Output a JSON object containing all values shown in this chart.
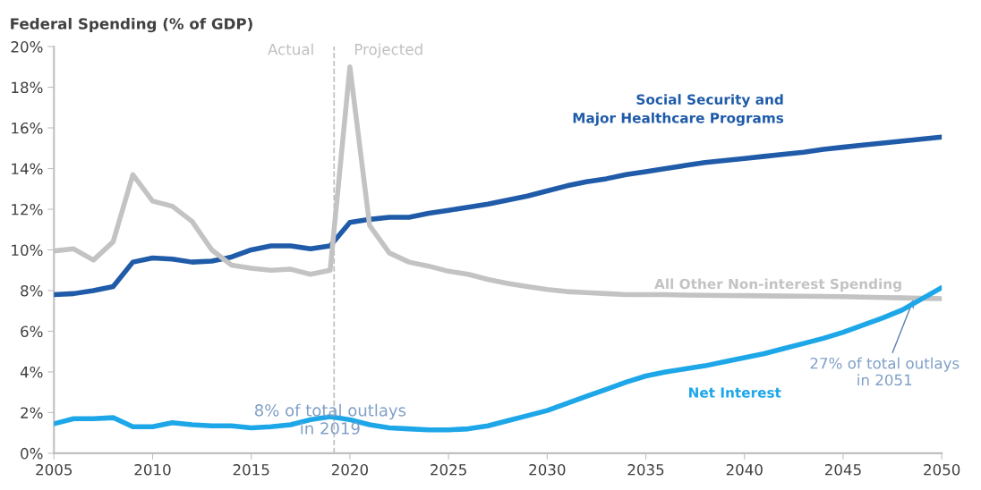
{
  "chart_data": {
    "type": "line",
    "title": "Federal Spending (% of GDP)",
    "x": [
      2005,
      2006,
      2007,
      2008,
      2009,
      2010,
      2011,
      2012,
      2013,
      2014,
      2015,
      2016,
      2017,
      2018,
      2019,
      2020,
      2021,
      2022,
      2023,
      2024,
      2025,
      2026,
      2027,
      2028,
      2029,
      2030,
      2031,
      2032,
      2033,
      2034,
      2035,
      2036,
      2037,
      2038,
      2039,
      2040,
      2041,
      2042,
      2043,
      2044,
      2045,
      2046,
      2047,
      2048,
      2049,
      2050
    ],
    "series": [
      {
        "name": "Social Security and\nMajor Healthcare Programs",
        "color": "#1f5ba8",
        "values": [
          7.8,
          7.85,
          8.0,
          8.2,
          9.4,
          9.6,
          9.55,
          9.4,
          9.45,
          9.65,
          10.0,
          10.2,
          10.2,
          10.05,
          10.2,
          11.35,
          11.5,
          11.6,
          11.6,
          11.8,
          11.95,
          12.1,
          12.25,
          12.45,
          12.65,
          12.9,
          13.15,
          13.35,
          13.5,
          13.7,
          13.85,
          14.0,
          14.15,
          14.3,
          14.4,
          14.5,
          14.6,
          14.7,
          14.8,
          14.95,
          15.05,
          15.15,
          15.25,
          15.35,
          15.45,
          15.55
        ]
      },
      {
        "name": "All Other Non-interest Spending",
        "color": "#c3c3c3",
        "values": [
          9.95,
          10.05,
          9.5,
          10.4,
          13.7,
          12.4,
          12.15,
          11.4,
          10.0,
          9.25,
          9.1,
          9.0,
          9.05,
          8.8,
          9.0,
          19.0,
          11.2,
          9.85,
          9.4,
          9.2,
          8.95,
          8.8,
          8.55,
          8.35,
          8.2,
          8.05,
          7.95,
          7.9,
          7.85,
          7.8,
          7.8,
          7.8,
          7.78,
          7.77,
          7.76,
          7.75,
          7.74,
          7.73,
          7.72,
          7.71,
          7.7,
          7.68,
          7.66,
          7.64,
          7.62,
          7.6
        ]
      },
      {
        "name": "Net Interest",
        "color": "#1ea7e8",
        "values": [
          1.45,
          1.7,
          1.7,
          1.75,
          1.3,
          1.3,
          1.5,
          1.4,
          1.35,
          1.35,
          1.25,
          1.3,
          1.4,
          1.65,
          1.8,
          1.65,
          1.4,
          1.25,
          1.2,
          1.15,
          1.15,
          1.2,
          1.35,
          1.6,
          1.85,
          2.1,
          2.45,
          2.8,
          3.15,
          3.5,
          3.8,
          4.0,
          4.15,
          4.3,
          4.5,
          4.7,
          4.9,
          5.15,
          5.4,
          5.65,
          5.95,
          6.3,
          6.65,
          7.05,
          7.6,
          8.15
        ]
      }
    ],
    "xlim": [
      2005,
      2050
    ],
    "xticks": [
      2005,
      2010,
      2015,
      2020,
      2025,
      2030,
      2035,
      2040,
      2045,
      2050
    ],
    "ylim": [
      0,
      20
    ],
    "yticks": [
      {
        "value": 0,
        "label": "0%"
      },
      {
        "value": 2,
        "label": "2%"
      },
      {
        "value": 4,
        "label": "4%"
      },
      {
        "value": 6,
        "label": "6%"
      },
      {
        "value": 8,
        "label": "8%"
      },
      {
        "value": 10,
        "label": "10%"
      },
      {
        "value": 12,
        "label": "12%"
      },
      {
        "value": 14,
        "label": "14%"
      },
      {
        "value": 16,
        "label": "16%"
      },
      {
        "value": 18,
        "label": "18%"
      },
      {
        "value": 20,
        "label": "20%"
      }
    ],
    "ref_lines": [
      {
        "axis": "x",
        "value": 2019.2,
        "color": "#bfbfbf",
        "line_style": "dashed"
      }
    ],
    "annotations": [
      {
        "text": "Actual",
        "x": 2019.2,
        "y": 19.8
      },
      {
        "text": "Projected",
        "x": 2019.2,
        "y": 19.8
      },
      {
        "text": "8% of total outlays\nin 2019",
        "x": 2019,
        "y": 1.8
      },
      {
        "text": "27% of total outlays\nin 2051",
        "x": 2048.6,
        "y": 7.65
      }
    ],
    "grid": false,
    "legend": false,
    "marker": "none",
    "line_style": "solid"
  }
}
